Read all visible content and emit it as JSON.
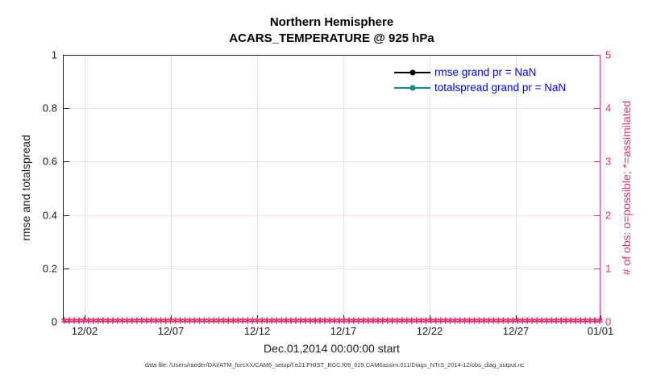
{
  "figure": {
    "title_line1": "Northern Hemisphere",
    "title_line2": "ACARS_TEMPERATURE @ 925 hPa",
    "footer": "data file: /Users/raeder/DAI/ATM_forcXX/CAM6_setup/f.e21.FHIST_BGC.f09_025.CAM6assim.011/Diags_NTrS_2014-12/obs_diag_output.nc"
  },
  "axes": {
    "left": {
      "label": "rmse and totalspread",
      "ticks": [
        "0",
        "0.2",
        "0.4",
        "0.6",
        "0.8",
        "1"
      ],
      "range": [
        0,
        1
      ]
    },
    "right": {
      "label": "# of obs: o=possible; *=assimilated",
      "ticks": [
        "0",
        "1",
        "2",
        "3",
        "4",
        "5"
      ],
      "range": [
        0,
        5
      ]
    },
    "x": {
      "label": "Dec.01,2014 00:00:00 start",
      "ticks": [
        "12/02",
        "12/07",
        "12/12",
        "12/17",
        "12/22",
        "12/27",
        "01/01"
      ]
    }
  },
  "legend": {
    "items": [
      {
        "label": "rmse grand pr = NaN",
        "color": "#000000"
      },
      {
        "label": "totalspread grand pr = NaN",
        "color": "#108a8a"
      }
    ],
    "text_color": "#0000f0"
  },
  "colors": {
    "obs_pink": "#e2336e",
    "totalspread_teal": "#108a8a",
    "rmse_black": "#000000",
    "legend_blue": "#0000f0",
    "grid_vertical": "#e2e2e2",
    "grid_horizontal": "#f6d9e4"
  },
  "chart_data": {
    "type": "line",
    "title": "Northern Hemisphere",
    "subtitle": "ACARS_TEMPERATURE @ 925 hPa",
    "xlabel": "Dec.01,2014 00:00:00 start",
    "ylabel_left": "rmse and totalspread",
    "ylabel_right": "# of obs: o=possible; *=assimilated",
    "x_tick_labels": [
      "12/02",
      "12/07",
      "12/12",
      "12/17",
      "12/22",
      "12/27",
      "01/01"
    ],
    "x_range_days": [
      "2014-11-30",
      "2015-01-01"
    ],
    "ylim_left": [
      0,
      1
    ],
    "ylim_right": [
      0,
      5
    ],
    "grid": true,
    "legend_position": "upper right, inside axes, no box",
    "series": [
      {
        "name": "rmse",
        "legend": "rmse grand pr = NaN",
        "axis": "left",
        "color": "#000000",
        "marker": "filled-circle",
        "grand_mean": "NaN",
        "values": []
      },
      {
        "name": "totalspread",
        "legend": "totalspread grand pr = NaN",
        "axis": "left",
        "color": "#108a8a",
        "marker": "filled-circle",
        "grand_mean": "NaN",
        "values": []
      },
      {
        "name": "observations possible",
        "axis": "right",
        "color": "#e2336e",
        "marker": "o",
        "constant_value": 0
      },
      {
        "name": "observations assimilated",
        "axis": "right",
        "color": "#e2336e",
        "marker": "*",
        "constant_value": 0
      }
    ],
    "annotation": "Dense pink asterisk band along y=0 across the whole x-axis: obs counts are 0 at every assimilation time from Dec 1 2014 through Jan 1 2015"
  },
  "marker_band": {
    "count": 112,
    "glyph": "✱",
    "value_right_axis": 0
  }
}
